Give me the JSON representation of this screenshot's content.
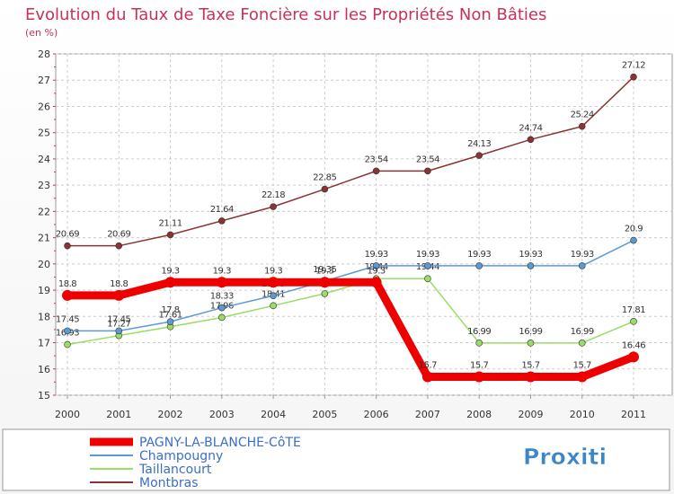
{
  "chart_data": {
    "type": "line",
    "title": "Evolution du Taux de Taxe Foncière sur les Propriétés Non Bâties",
    "subtitle": "(en %)",
    "xlabel": "",
    "ylabel": "",
    "ylim": [
      15,
      28
    ],
    "y_ticks": [
      "15",
      "16",
      "17",
      "18",
      "19",
      "20",
      "21",
      "22",
      "23",
      "24",
      "25",
      "26",
      "27",
      "28"
    ],
    "categories": [
      "2000",
      "2001",
      "2002",
      "2003",
      "2004",
      "2005",
      "2006",
      "2007",
      "2008",
      "2009",
      "2010",
      "2011"
    ],
    "series": [
      {
        "name": "PAGNY-LA-BLANCHE-CôTE",
        "color": "#ee0000",
        "values": [
          18.8,
          18.8,
          19.3,
          19.3,
          19.3,
          19.3,
          19.3,
          15.7,
          15.7,
          15.7,
          15.7,
          16.46
        ],
        "labels": [
          "18.8",
          "18.8",
          "19.3",
          "19.3",
          "19.3",
          "19.3",
          "19.3",
          "15.7",
          "15.7",
          "15.7",
          "15.7",
          "16.46"
        ]
      },
      {
        "name": "Champougny",
        "color": "#5b9bd5",
        "values": [
          17.45,
          17.45,
          17.8,
          18.33,
          18.79,
          19.35,
          19.93,
          19.93,
          19.93,
          19.93,
          19.93,
          20.9
        ],
        "labels": [
          "17.45",
          "17.45",
          "17.8",
          "18.33",
          "18.79",
          "19.35",
          "19.93",
          "19.93",
          "19.93",
          "19.93",
          "19.93",
          "20.9"
        ]
      },
      {
        "name": "Taillancourt",
        "color": "#99dd66",
        "values": [
          16.93,
          17.27,
          17.61,
          17.96,
          18.41,
          18.87,
          19.44,
          19.44,
          16.99,
          16.99,
          16.99,
          17.81
        ],
        "labels": [
          "16.93",
          "17.27",
          "17.61",
          "17.96",
          "18.41",
          "18.87",
          "19.44",
          "19.44",
          "16.99",
          "16.99",
          "16.99",
          "17.81"
        ]
      },
      {
        "name": "Montbras",
        "color": "#8b3333",
        "values": [
          20.69,
          20.69,
          21.11,
          21.64,
          22.18,
          22.85,
          23.54,
          23.54,
          24.13,
          24.74,
          25.24,
          27.12
        ],
        "labels": [
          "20.69",
          "20.69",
          "21.11",
          "21.64",
          "22.18",
          "22.85",
          "23.54",
          "23.54",
          "24.13",
          "24.74",
          "25.24",
          "27.12"
        ]
      }
    ],
    "legend": [
      "PAGNY-LA-BLANCHE-CôTE",
      "Champougny",
      "Taillancourt",
      "Montbras"
    ]
  },
  "logo": {
    "text": "Proxiti"
  }
}
